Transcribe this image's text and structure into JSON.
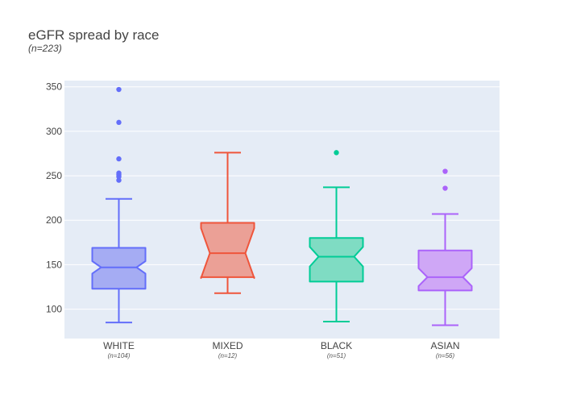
{
  "title": "eGFR spread by race",
  "subtitle": "(n=223)",
  "chart_data": {
    "type": "box",
    "notched": true,
    "title": "eGFR spread by race",
    "subtitle": "(n=223)",
    "xlabel": "",
    "ylabel": "",
    "ylim": [
      67,
      357
    ],
    "yticks": [
      100,
      150,
      200,
      250,
      300,
      350
    ],
    "grid": true,
    "categories": [
      "WHITE",
      "MIXED",
      "BLACK",
      "ASIAN"
    ],
    "counts": [
      "(n=104)",
      "(n=12)",
      "(n=51)",
      "(n=56)"
    ],
    "series": [
      {
        "category": "WHITE",
        "color": "#636efa",
        "fill": "#a5acf3",
        "min": 85,
        "q1": 123,
        "median": 147,
        "q3": 169,
        "max": 224,
        "notch_low": 140,
        "notch_high": 154,
        "outliers": [
          245,
          249,
          251,
          253,
          269,
          310,
          347
        ]
      },
      {
        "category": "MIXED",
        "color": "#ef553b",
        "fill": "#eba096",
        "min": 118,
        "q1": 136,
        "median": 163,
        "q3": 197,
        "max": 276,
        "notch_low": 135,
        "notch_high": 191,
        "outliers": []
      },
      {
        "category": "BLACK",
        "color": "#00cc96",
        "fill": "#7fdcc3",
        "min": 86,
        "q1": 131,
        "median": 159,
        "q3": 180,
        "max": 237,
        "notch_low": 148,
        "notch_high": 170,
        "outliers": [
          276
        ]
      },
      {
        "category": "ASIAN",
        "color": "#ab63fa",
        "fill": "#cfa7f6",
        "min": 82,
        "q1": 121,
        "median": 136,
        "q3": 166,
        "max": 207,
        "notch_low": 126,
        "notch_high": 146,
        "outliers": [
          236,
          255
        ]
      }
    ]
  }
}
